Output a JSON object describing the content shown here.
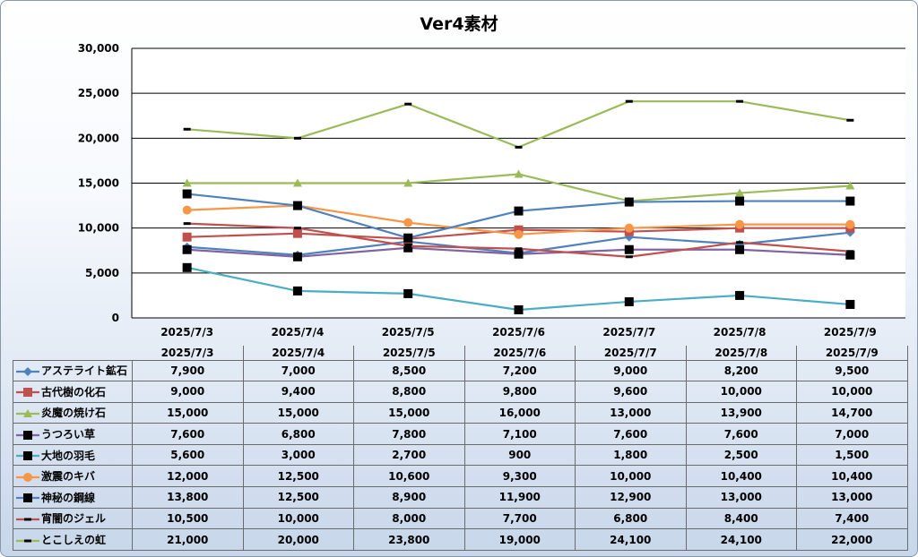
{
  "chart_data": {
    "type": "line",
    "title": "Ver4素材",
    "categories": [
      "2025/7/3",
      "2025/7/4",
      "2025/7/5",
      "2025/7/6",
      "2025/7/7",
      "2025/7/8",
      "2025/7/9"
    ],
    "ylim": [
      0,
      30000
    ],
    "yticks": [
      "0",
      "5,000",
      "10,000",
      "15,000",
      "20,000",
      "25,000",
      "30,000"
    ],
    "grid": true,
    "legend": "data-table",
    "series": [
      {
        "name": "アステライト鉱石",
        "color": "#4f81bd",
        "marker": "diamond",
        "values": [
          7900,
          7000,
          8500,
          7200,
          9000,
          8200,
          9500
        ],
        "labels": [
          "7,900",
          "7,000",
          "8,500",
          "7,200",
          "9,000",
          "8,200",
          "9,500"
        ]
      },
      {
        "name": "古代樹の化石",
        "color": "#c0504d",
        "marker": "square",
        "values": [
          9000,
          9400,
          8800,
          9800,
          9600,
          10000,
          10000
        ],
        "labels": [
          "9,000",
          "9,400",
          "8,800",
          "9,800",
          "9,600",
          "10,000",
          "10,000"
        ]
      },
      {
        "name": "炎魔の焼け石",
        "color": "#9bbb59",
        "marker": "triangle",
        "values": [
          15000,
          15000,
          15000,
          16000,
          13000,
          13900,
          14700
        ],
        "labels": [
          "15,000",
          "15,000",
          "15,000",
          "16,000",
          "13,000",
          "13,900",
          "14,700"
        ]
      },
      {
        "name": "うつろい草",
        "color": "#8064a2",
        "marker": "blacksquare",
        "values": [
          7600,
          6800,
          7800,
          7100,
          7600,
          7600,
          7000
        ],
        "labels": [
          "7,600",
          "6,800",
          "7,800",
          "7,100",
          "7,600",
          "7,600",
          "7,000"
        ]
      },
      {
        "name": "大地の羽毛",
        "color": "#4bacc6",
        "marker": "blacksquare",
        "values": [
          5600,
          3000,
          2700,
          900,
          1800,
          2500,
          1500
        ],
        "labels": [
          "5,600",
          "3,000",
          "2,700",
          "900",
          "1,800",
          "2,500",
          "1,500"
        ]
      },
      {
        "name": "激震のキバ",
        "color": "#f79646",
        "marker": "circle",
        "values": [
          12000,
          12500,
          10600,
          9300,
          10000,
          10400,
          10400
        ],
        "labels": [
          "12,000",
          "12,500",
          "10,600",
          "9,300",
          "10,000",
          "10,400",
          "10,400"
        ]
      },
      {
        "name": "神秘の鋼線",
        "color": "#4f81bd",
        "marker": "blacksquare",
        "values": [
          13800,
          12500,
          8900,
          11900,
          12900,
          13000,
          13000
        ],
        "labels": [
          "13,800",
          "12,500",
          "8,900",
          "11,900",
          "12,900",
          "13,000",
          "13,000"
        ]
      },
      {
        "name": "宵闇のジェル",
        "color": "#c0504d",
        "marker": "dash",
        "values": [
          10500,
          10000,
          8000,
          7700,
          6800,
          8400,
          7400
        ],
        "labels": [
          "10,500",
          "10,000",
          "8,000",
          "7,700",
          "6,800",
          "8,400",
          "7,400"
        ]
      },
      {
        "name": "とこしえの虹",
        "color": "#9bbb59",
        "marker": "dash",
        "values": [
          21000,
          20000,
          23800,
          19000,
          24100,
          24100,
          22000
        ],
        "labels": [
          "21,000",
          "20,000",
          "23,800",
          "19,000",
          "24,100",
          "24,100",
          "22,000"
        ]
      }
    ]
  }
}
